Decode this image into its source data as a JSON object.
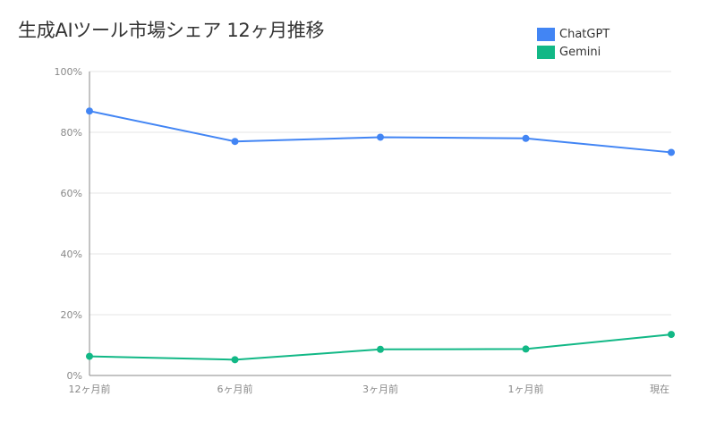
{
  "chart_data": {
    "type": "line",
    "title": "生成AIツール市場シェア 12ヶ月推移",
    "xlabel": "",
    "ylabel": "",
    "categories": [
      "12ヶ月前",
      "6ヶ月前",
      "3ヶ月前",
      "1ヶ月前",
      "現在"
    ],
    "series": [
      {
        "name": "ChatGPT",
        "color": "#4285f4",
        "values": [
          87.0,
          77.0,
          78.4,
          78.0,
          73.4
        ]
      },
      {
        "name": "Gemini",
        "color": "#12b886",
        "values": [
          6.3,
          5.2,
          8.6,
          8.7,
          13.5
        ]
      }
    ],
    "ylim": [
      0,
      100
    ],
    "yticks": [
      0,
      20,
      40,
      60,
      80,
      100
    ],
    "ytick_labels": [
      "0%",
      "20%",
      "40%",
      "60%",
      "80%",
      "100%"
    ],
    "grid": true,
    "legend_position": "top-right"
  }
}
